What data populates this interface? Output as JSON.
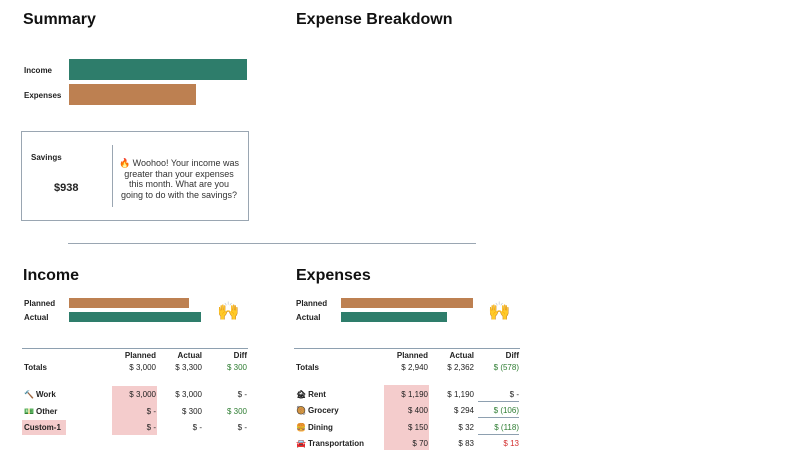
{
  "summary": {
    "title": "Summary",
    "income_label": "Income",
    "expenses_label": "Expenses",
    "savings_label": "Savings",
    "savings_amount": "$938",
    "savings_message": "🔥 Woohoo! Your income was greater than your expenses this month. What are you going to do with the savings?"
  },
  "breakdown": {
    "title": "Expense Breakdown"
  },
  "colors": {
    "income_bar": "#2e7d6b",
    "expense_bar": "#bd8051",
    "highlight": "#f4cccc",
    "positive": "#2e7d32",
    "negative": "#d32f2f"
  },
  "income": {
    "title": "Income",
    "planned_label": "Planned",
    "actual_label": "Actual",
    "icon": "raising-hands-icon",
    "emoji": "🙌",
    "columns": {
      "planned": "Planned",
      "actual": "Actual",
      "diff": "Diff"
    },
    "totals": {
      "label": "Totals",
      "planned": "$ 3,000",
      "actual": "$ 3,300",
      "diff": "$ 300"
    },
    "rows": [
      {
        "emoji": "🔨",
        "name": "Work",
        "planned": "$ 3,000",
        "actual": "$ 3,000",
        "diff": "$ -"
      },
      {
        "emoji": "💵",
        "name": "Other",
        "planned": "$ -",
        "actual": "$ 300",
        "diff": "$ 300"
      },
      {
        "emoji": "",
        "name": "Custom-1",
        "planned": "$ -",
        "actual": "$ -",
        "diff": "$ -"
      }
    ]
  },
  "expenses": {
    "title": "Expenses",
    "planned_label": "Planned",
    "actual_label": "Actual",
    "icon": "raising-hands-icon",
    "emoji": "🙌",
    "columns": {
      "planned": "Planned",
      "actual": "Actual",
      "diff": "Diff"
    },
    "totals": {
      "label": "Totals",
      "planned": "$ 2,940",
      "actual": "$ 2,362",
      "diff": "$ (578)"
    },
    "rows": [
      {
        "emoji": "🏚",
        "name": "Rent",
        "planned": "$ 1,190",
        "actual": "$ 1,190",
        "diff": "$ -"
      },
      {
        "emoji": "🥘",
        "name": "Grocery",
        "planned": "$ 400",
        "actual": "$ 294",
        "diff": "$ (106)"
      },
      {
        "emoji": "🍔",
        "name": "Dining",
        "planned": "$ 150",
        "actual": "$ 32",
        "diff": "$ (118)"
      },
      {
        "emoji": "🚘",
        "name": "Transportation",
        "planned": "$ 70",
        "actual": "$ 83",
        "diff": "$ 13"
      }
    ]
  }
}
